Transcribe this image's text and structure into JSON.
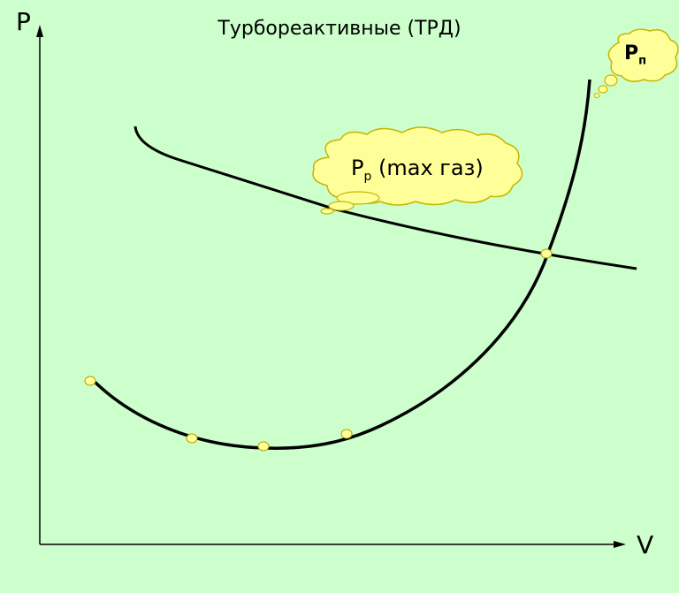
{
  "title": "Турбореактивные (ТРД)",
  "axes": {
    "y_label": "P",
    "x_label": "V"
  },
  "labels": {
    "available_thrust": {
      "main": "P",
      "sub": "р",
      "suffix": " (max газ)"
    },
    "required_thrust": {
      "main": "P",
      "sub": "п"
    }
  },
  "colors": {
    "background": "#CCFFCC",
    "curve": "#000000",
    "marker_fill": "#FFFF99",
    "marker_stroke": "#B8A000",
    "cloud_fill": "#FFFF99",
    "cloud_stroke": "#C8B400"
  },
  "chart_data": {
    "type": "line",
    "series": [
      {
        "values": [
          1.0,
          0.82,
          0.7,
          0.6,
          0.5
        ]
      },
      {
        "values": [
          0.6,
          0.3,
          0.27,
          0.29,
          0.45,
          1.8
        ]
      }
    ],
    "markers": [
      {
        "series": "required"
      },
      {
        "series": "required"
      },
      {
        "series": "required"
      },
      {
        "series": "required"
      },
      {
        "series": "intersection"
      }
    ]
  }
}
